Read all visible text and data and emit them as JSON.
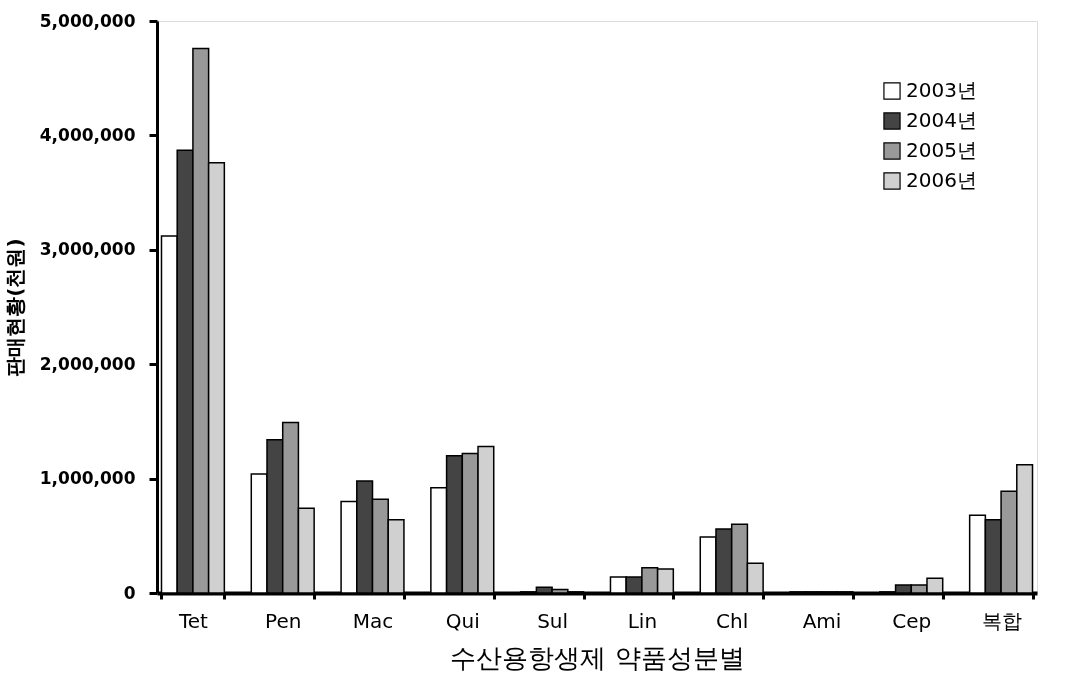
{
  "chart_data": {
    "type": "bar",
    "xlabel": "수산용항생제 약품성분별",
    "ylabel": "판매현황(천원)",
    "categories": [
      "Tet",
      "Pen",
      "Mac",
      "Qui",
      "Sul",
      "Lin",
      "Chl",
      "Ami",
      "Cep",
      "복합"
    ],
    "series": [
      {
        "name": "2003년",
        "color": "#ffffff",
        "values": [
          3120000,
          1040000,
          800000,
          920000,
          10000,
          140000,
          490000,
          10000,
          10000,
          680000
        ]
      },
      {
        "name": "2004년",
        "color": "#444444",
        "values": [
          3870000,
          1340000,
          980000,
          1200000,
          50000,
          140000,
          560000,
          10000,
          70000,
          640000
        ]
      },
      {
        "name": "2005년",
        "color": "#999999",
        "values": [
          4760000,
          1490000,
          820000,
          1220000,
          30000,
          220000,
          600000,
          10000,
          70000,
          890000
        ]
      },
      {
        "name": "2006년",
        "color": "#d0d0d0",
        "values": [
          3760000,
          740000,
          640000,
          1280000,
          10000,
          210000,
          260000,
          10000,
          130000,
          1120000
        ]
      }
    ],
    "ylim": [
      0,
      5000000
    ],
    "yticks": [
      0,
      {
        "value": 1000000,
        "label": "1,000,000"
      },
      {
        "value": 2000000,
        "label": "2,000,000"
      },
      {
        "value": 3000000,
        "label": "3,000,000"
      },
      {
        "value": 4000000,
        "label": "4,000,000"
      },
      {
        "value": 5000000,
        "label": "5,000,000"
      }
    ],
    "grid": false,
    "legend": "top right"
  }
}
